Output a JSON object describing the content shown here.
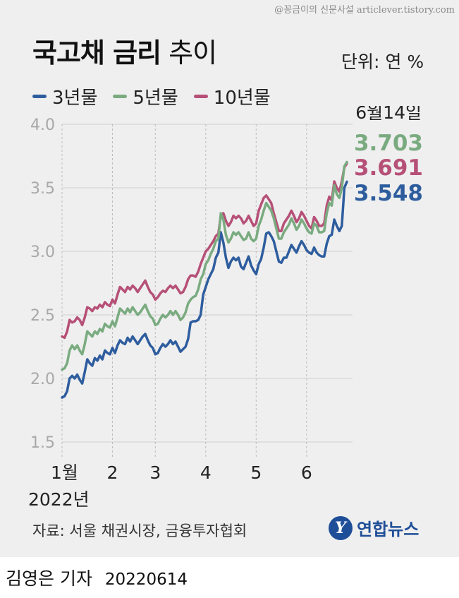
{
  "watermark": "@꽁금이의 신문사설 articlever.tistory.com",
  "title": {
    "bold": "국고채 금리",
    "light": "추이"
  },
  "unit_label": "단위: 연 %",
  "source_label": "자료: 서울 채권시장, 금융투자협회",
  "logo": {
    "mark": "Y",
    "text": "연합뉴스"
  },
  "byline": {
    "name": "김영은 기자",
    "date": "20220614"
  },
  "chart_data": {
    "type": "line",
    "title": "국고채 금리 추이",
    "xlabel": "",
    "ylabel": "",
    "unit": "단위: 연 %",
    "ylim": [
      1.5,
      4.0
    ],
    "yticks": [
      "1.5",
      "2.0",
      "2.5",
      "3.0",
      "3.5",
      "4.0"
    ],
    "grid": true,
    "legend_position": "top-left",
    "x_domain": [
      0,
      113
    ],
    "xticks": [
      {
        "x": 0,
        "label": "1월"
      },
      {
        "x": 20,
        "label": "2"
      },
      {
        "x": 37,
        "label": "3"
      },
      {
        "x": 57,
        "label": "4"
      },
      {
        "x": 77,
        "label": "5"
      },
      {
        "x": 97,
        "label": "6"
      }
    ],
    "x_sublabel": "2022년",
    "end_label": "6월14일",
    "series": [
      {
        "name": "3년물",
        "color": "#2e5d9e",
        "end_value": "3.548",
        "values": [
          1.85,
          1.86,
          1.9,
          2.0,
          2.02,
          2.0,
          2.03,
          1.99,
          1.96,
          2.05,
          2.15,
          2.12,
          2.1,
          2.16,
          2.14,
          2.18,
          2.15,
          2.22,
          2.2,
          2.19,
          2.24,
          2.2,
          2.26,
          2.3,
          2.28,
          2.27,
          2.32,
          2.29,
          2.33,
          2.3,
          2.27,
          2.3,
          2.33,
          2.35,
          2.3,
          2.26,
          2.24,
          2.19,
          2.2,
          2.24,
          2.27,
          2.25,
          2.27,
          2.3,
          2.27,
          2.29,
          2.25,
          2.21,
          2.23,
          2.25,
          2.31,
          2.44,
          2.45,
          2.45,
          2.46,
          2.5,
          2.66,
          2.72,
          2.78,
          2.82,
          2.86,
          2.95,
          2.99,
          3.15,
          3.07,
          2.95,
          2.87,
          2.92,
          2.95,
          2.93,
          2.95,
          2.88,
          2.86,
          2.91,
          2.96,
          2.89,
          2.85,
          2.82,
          2.9,
          2.94,
          3.03,
          3.14,
          3.15,
          3.12,
          3.08,
          3.0,
          2.92,
          2.91,
          2.95,
          2.95,
          3.0,
          3.05,
          3.02,
          2.99,
          3.04,
          3.08,
          3.05,
          3.01,
          2.99,
          2.98,
          3.03,
          2.99,
          2.97,
          2.96,
          2.96,
          3.06,
          3.12,
          3.13,
          3.25,
          3.2,
          3.16,
          3.2,
          3.5,
          3.548
        ]
      },
      {
        "name": "5년물",
        "color": "#7aab80",
        "end_value": "3.703",
        "values": [
          2.07,
          2.08,
          2.12,
          2.22,
          2.26,
          2.23,
          2.26,
          2.22,
          2.19,
          2.27,
          2.37,
          2.35,
          2.33,
          2.37,
          2.35,
          2.39,
          2.37,
          2.43,
          2.41,
          2.4,
          2.45,
          2.41,
          2.48,
          2.55,
          2.53,
          2.51,
          2.55,
          2.52,
          2.56,
          2.53,
          2.5,
          2.52,
          2.55,
          2.58,
          2.53,
          2.49,
          2.47,
          2.42,
          2.43,
          2.47,
          2.5,
          2.48,
          2.5,
          2.53,
          2.5,
          2.53,
          2.5,
          2.46,
          2.48,
          2.52,
          2.59,
          2.62,
          2.64,
          2.65,
          2.7,
          2.78,
          2.82,
          2.9,
          2.93,
          2.98,
          3.02,
          3.08,
          3.1,
          3.3,
          3.25,
          3.13,
          3.07,
          3.1,
          3.15,
          3.13,
          3.15,
          3.12,
          3.09,
          3.1,
          3.15,
          3.1,
          3.08,
          3.1,
          3.2,
          3.25,
          3.32,
          3.38,
          3.35,
          3.32,
          3.26,
          3.18,
          3.1,
          3.1,
          3.15,
          3.18,
          3.21,
          3.26,
          3.22,
          3.17,
          3.2,
          3.25,
          3.22,
          3.18,
          3.15,
          3.14,
          3.22,
          3.2,
          3.15,
          3.15,
          3.16,
          3.3,
          3.38,
          3.36,
          3.52,
          3.45,
          3.42,
          3.5,
          3.67,
          3.703
        ]
      },
      {
        "name": "10년물",
        "color": "#b65077",
        "end_value": "3.691",
        "values": [
          2.33,
          2.32,
          2.37,
          2.46,
          2.44,
          2.45,
          2.48,
          2.46,
          2.42,
          2.48,
          2.56,
          2.55,
          2.53,
          2.56,
          2.55,
          2.58,
          2.56,
          2.6,
          2.58,
          2.57,
          2.62,
          2.59,
          2.66,
          2.72,
          2.7,
          2.68,
          2.72,
          2.7,
          2.73,
          2.71,
          2.68,
          2.71,
          2.74,
          2.77,
          2.72,
          2.68,
          2.66,
          2.62,
          2.64,
          2.67,
          2.69,
          2.68,
          2.71,
          2.73,
          2.71,
          2.73,
          2.7,
          2.67,
          2.68,
          2.72,
          2.78,
          2.81,
          2.81,
          2.8,
          2.84,
          2.9,
          2.95,
          3.0,
          3.02,
          3.05,
          3.08,
          3.12,
          3.14,
          3.28,
          3.3,
          3.24,
          3.2,
          3.23,
          3.28,
          3.26,
          3.28,
          3.26,
          3.22,
          3.24,
          3.28,
          3.24,
          3.2,
          3.22,
          3.32,
          3.37,
          3.42,
          3.44,
          3.41,
          3.38,
          3.3,
          3.23,
          3.16,
          3.16,
          3.22,
          3.25,
          3.28,
          3.32,
          3.28,
          3.23,
          3.26,
          3.31,
          3.28,
          3.24,
          3.2,
          3.18,
          3.27,
          3.24,
          3.2,
          3.2,
          3.22,
          3.36,
          3.43,
          3.4,
          3.55,
          3.5,
          3.47,
          3.55,
          3.66,
          3.691
        ]
      }
    ]
  }
}
